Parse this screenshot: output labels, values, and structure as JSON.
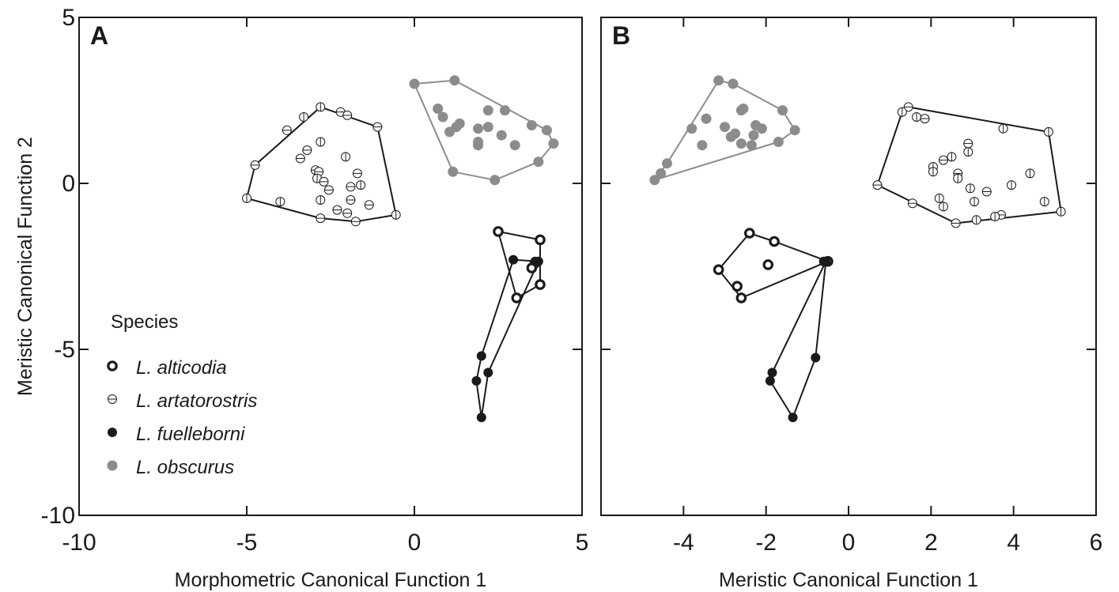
{
  "colors": {
    "black": "#1a1a1a",
    "gray": "#8c8c8c",
    "white": "#ffffff"
  },
  "legend": {
    "title": "Species",
    "items": [
      {
        "name": "L. alticodia",
        "marker": "thick-ring"
      },
      {
        "name": "L. artatorostris",
        "marker": "open-barred"
      },
      {
        "name": "L. fuelleborni",
        "marker": "filled-black"
      },
      {
        "name": "L. obscurus",
        "marker": "filled-gray"
      }
    ]
  },
  "chart_data": [
    {
      "type": "scatter",
      "panel": "A",
      "title": "",
      "xlabel": "Morphometric Canonical Function 1",
      "ylabel": "Meristic Canonical Function 2",
      "xlim": [
        -10,
        5
      ],
      "ylim": [
        -10,
        5
      ],
      "xticks": [
        -10,
        -5,
        0,
        5
      ],
      "yticks": [
        -10,
        -5,
        0,
        5
      ],
      "series": [
        {
          "name": "L. alticodia",
          "hull": [
            [
              2.5,
              -1.45
            ],
            [
              3.75,
              -1.7
            ],
            [
              3.75,
              -3.05
            ],
            [
              3.05,
              -3.45
            ]
          ],
          "points": [
            [
              2.5,
              -1.45
            ],
            [
              3.75,
              -1.7
            ],
            [
              3.6,
              -2.4
            ],
            [
              3.5,
              -2.55
            ],
            [
              3.75,
              -3.05
            ],
            [
              3.05,
              -3.45
            ]
          ]
        },
        {
          "name": "L. artatorostris",
          "hull": [
            [
              -2.8,
              2.3
            ],
            [
              -1.1,
              1.7
            ],
            [
              -0.55,
              -0.95
            ],
            [
              -1.75,
              -1.15
            ],
            [
              -2.8,
              -1.05
            ],
            [
              -5.0,
              -0.45
            ],
            [
              -4.75,
              0.55
            ]
          ],
          "points": [
            [
              -2.8,
              2.3
            ],
            [
              -2.2,
              2.15
            ],
            [
              -2.0,
              2.05
            ],
            [
              -3.3,
              2.0
            ],
            [
              -3.8,
              1.6
            ],
            [
              -1.1,
              1.7
            ],
            [
              -2.8,
              1.25
            ],
            [
              -3.2,
              1.0
            ],
            [
              -3.4,
              0.75
            ],
            [
              -2.05,
              0.8
            ],
            [
              -2.95,
              0.4
            ],
            [
              -2.85,
              0.35
            ],
            [
              -2.9,
              0.15
            ],
            [
              -2.7,
              0.05
            ],
            [
              -1.7,
              0.3
            ],
            [
              -1.6,
              -0.05
            ],
            [
              -1.9,
              -0.1
            ],
            [
              -2.55,
              -0.2
            ],
            [
              -2.8,
              -0.5
            ],
            [
              -1.9,
              -0.5
            ],
            [
              -1.35,
              -0.65
            ],
            [
              -4.0,
              -0.55
            ],
            [
              -2.3,
              -0.8
            ],
            [
              -2.0,
              -0.9
            ],
            [
              -0.55,
              -0.95
            ],
            [
              -1.75,
              -1.15
            ],
            [
              -2.8,
              -1.05
            ],
            [
              -5.0,
              -0.45
            ],
            [
              -4.75,
              0.55
            ]
          ]
        },
        {
          "name": "L. fuelleborni",
          "hull": [
            [
              2.95,
              -2.3
            ],
            [
              3.7,
              -2.35
            ],
            [
              2.2,
              -5.7
            ],
            [
              2.0,
              -7.05
            ],
            [
              1.85,
              -5.95
            ],
            [
              2.0,
              -5.2
            ]
          ],
          "points": [
            [
              2.95,
              -2.3
            ],
            [
              3.6,
              -2.35
            ],
            [
              3.7,
              -2.35
            ],
            [
              2.0,
              -5.2
            ],
            [
              2.2,
              -5.7
            ],
            [
              1.85,
              -5.95
            ],
            [
              2.0,
              -7.05
            ]
          ]
        },
        {
          "name": "L. obscurus",
          "hull": [
            [
              0.0,
              3.0
            ],
            [
              1.2,
              3.1
            ],
            [
              3.95,
              1.6
            ],
            [
              4.15,
              1.2
            ],
            [
              3.7,
              0.65
            ],
            [
              2.4,
              0.1
            ],
            [
              1.15,
              0.35
            ]
          ],
          "points": [
            [
              0.0,
              3.0
            ],
            [
              1.2,
              3.1
            ],
            [
              0.7,
              2.25
            ],
            [
              0.85,
              2.0
            ],
            [
              1.35,
              1.8
            ],
            [
              1.25,
              1.7
            ],
            [
              1.05,
              1.55
            ],
            [
              2.2,
              2.2
            ],
            [
              2.7,
              2.2
            ],
            [
              1.9,
              1.65
            ],
            [
              2.2,
              1.7
            ],
            [
              3.5,
              1.75
            ],
            [
              3.95,
              1.6
            ],
            [
              2.6,
              1.45
            ],
            [
              1.9,
              1.25
            ],
            [
              1.9,
              1.15
            ],
            [
              3.0,
              1.15
            ],
            [
              4.15,
              1.2
            ],
            [
              3.7,
              0.65
            ],
            [
              2.4,
              0.1
            ],
            [
              1.15,
              0.35
            ]
          ]
        }
      ]
    },
    {
      "type": "scatter",
      "panel": "B",
      "title": "",
      "xlabel": "Meristic Canonical Function 1",
      "ylabel": "",
      "xlim": [
        -6,
        6
      ],
      "ylim": [
        -10,
        5
      ],
      "xticks": [
        -4,
        -2,
        0,
        2,
        4,
        6
      ],
      "yticks": [
        -10,
        -5,
        0,
        5
      ],
      "series": [
        {
          "name": "L. alticodia",
          "hull": [
            [
              -2.4,
              -1.5
            ],
            [
              -1.8,
              -1.75
            ],
            [
              -0.5,
              -2.35
            ],
            [
              -2.6,
              -3.45
            ],
            [
              -3.15,
              -2.6
            ]
          ],
          "points": [
            [
              -2.4,
              -1.5
            ],
            [
              -1.8,
              -1.75
            ],
            [
              -1.95,
              -2.45
            ],
            [
              -3.15,
              -2.6
            ],
            [
              -2.7,
              -3.1
            ],
            [
              -2.6,
              -3.45
            ],
            [
              -0.5,
              -2.35
            ]
          ]
        },
        {
          "name": "L. artatorostris",
          "hull": [
            [
              1.45,
              2.3
            ],
            [
              4.85,
              1.55
            ],
            [
              5.15,
              -0.85
            ],
            [
              2.6,
              -1.2
            ],
            [
              0.7,
              -0.05
            ],
            [
              1.3,
              2.15
            ]
          ],
          "points": [
            [
              1.45,
              2.3
            ],
            [
              1.3,
              2.15
            ],
            [
              1.65,
              2.0
            ],
            [
              1.85,
              1.95
            ],
            [
              3.75,
              1.65
            ],
            [
              4.85,
              1.55
            ],
            [
              2.9,
              1.2
            ],
            [
              2.9,
              0.95
            ],
            [
              2.5,
              0.8
            ],
            [
              2.3,
              0.7
            ],
            [
              2.05,
              0.5
            ],
            [
              2.05,
              0.35
            ],
            [
              2.65,
              0.3
            ],
            [
              2.65,
              0.15
            ],
            [
              4.4,
              0.3
            ],
            [
              3.35,
              -0.25
            ],
            [
              2.95,
              -0.15
            ],
            [
              3.95,
              -0.05
            ],
            [
              0.7,
              -0.05
            ],
            [
              2.2,
              -0.45
            ],
            [
              2.3,
              -0.7
            ],
            [
              1.55,
              -0.6
            ],
            [
              3.05,
              -0.55
            ],
            [
              4.75,
              -0.55
            ],
            [
              3.7,
              -0.95
            ],
            [
              3.55,
              -1.0
            ],
            [
              3.1,
              -1.1
            ],
            [
              2.6,
              -1.2
            ],
            [
              5.15,
              -0.85
            ]
          ]
        },
        {
          "name": "L. fuelleborni",
          "hull": [
            [
              -0.55,
              -2.35
            ],
            [
              -0.8,
              -5.25
            ],
            [
              -1.35,
              -7.05
            ],
            [
              -1.9,
              -5.95
            ],
            [
              -1.85,
              -5.7
            ]
          ],
          "points": [
            [
              -0.55,
              -2.35
            ],
            [
              -0.6,
              -2.35
            ],
            [
              -0.8,
              -5.25
            ],
            [
              -1.85,
              -5.7
            ],
            [
              -1.9,
              -5.95
            ],
            [
              -1.35,
              -7.05
            ]
          ]
        },
        {
          "name": "L. obscurus",
          "hull": [
            [
              -3.15,
              3.1
            ],
            [
              -2.8,
              3.0
            ],
            [
              -1.6,
              2.2
            ],
            [
              -1.3,
              1.6
            ],
            [
              -1.7,
              1.25
            ],
            [
              -4.7,
              0.1
            ],
            [
              -4.4,
              0.6
            ]
          ],
          "points": [
            [
              -3.15,
              3.1
            ],
            [
              -2.8,
              3.0
            ],
            [
              -3.45,
              1.95
            ],
            [
              -2.6,
              2.2
            ],
            [
              -2.55,
              2.25
            ],
            [
              -1.6,
              2.2
            ],
            [
              -3.8,
              1.65
            ],
            [
              -3.0,
              1.7
            ],
            [
              -2.75,
              1.5
            ],
            [
              -2.85,
              1.4
            ],
            [
              -2.25,
              1.75
            ],
            [
              -2.1,
              1.65
            ],
            [
              -2.3,
              1.45
            ],
            [
              -1.3,
              1.6
            ],
            [
              -3.55,
              1.15
            ],
            [
              -2.6,
              1.2
            ],
            [
              -2.35,
              1.15
            ],
            [
              -1.7,
              1.25
            ],
            [
              -4.4,
              0.6
            ],
            [
              -4.55,
              0.3
            ],
            [
              -4.7,
              0.1
            ]
          ]
        }
      ]
    }
  ]
}
